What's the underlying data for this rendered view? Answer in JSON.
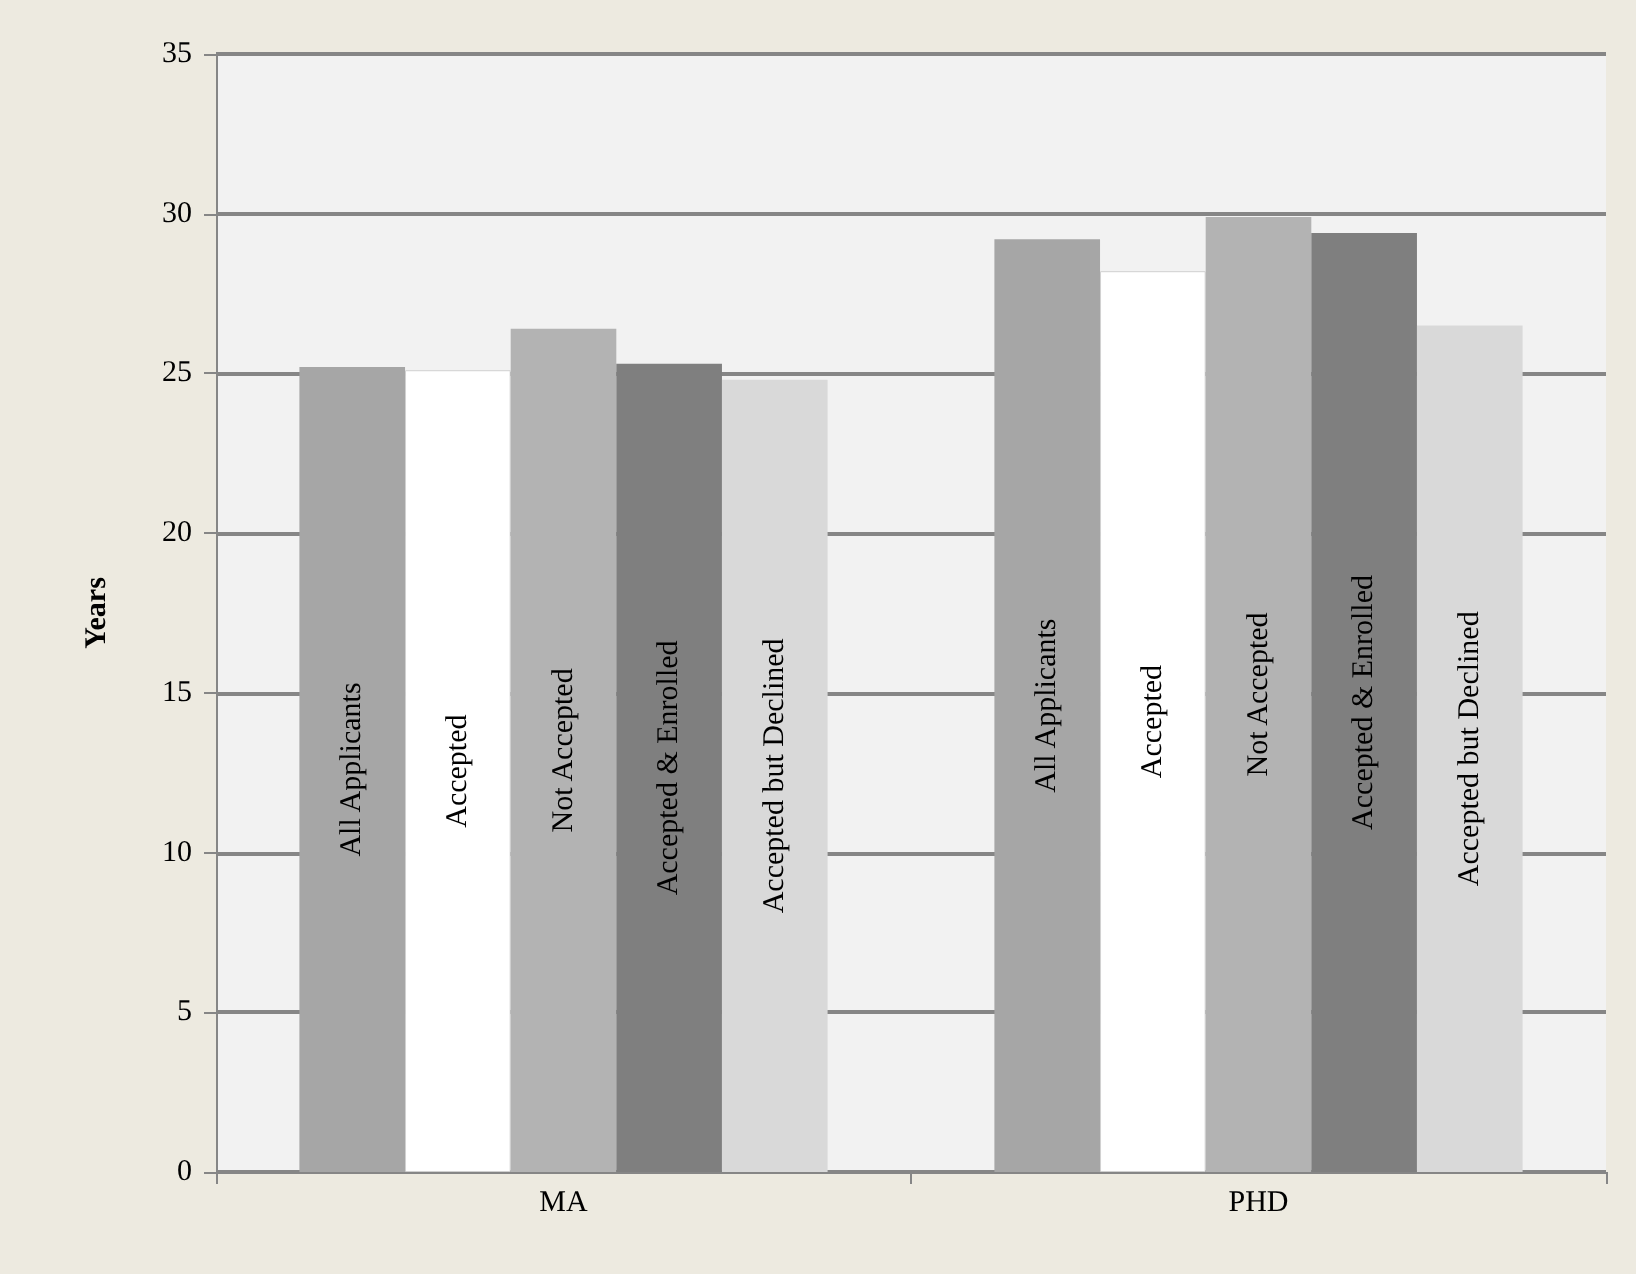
{
  "chart_data": {
    "type": "bar",
    "ylabel": "Years",
    "categories": [
      "MA",
      "PHD"
    ],
    "series": [
      {
        "name": "All Applicants",
        "color": "#a6a6a6",
        "values": [
          25.2,
          29.2
        ]
      },
      {
        "name": "Accepted",
        "color": "#ffffff",
        "values": [
          25.1,
          28.2
        ]
      },
      {
        "name": "Not Accepted",
        "color": "#b3b3b3",
        "values": [
          26.4,
          29.9
        ]
      },
      {
        "name": "Accepted & Enrolled",
        "color": "#7f7f7f",
        "values": [
          25.3,
          29.4
        ]
      },
      {
        "name": "Accepted but Declined",
        "color": "#d9d9d9",
        "values": [
          24.8,
          26.5
        ]
      }
    ],
    "ylim": [
      0,
      35
    ],
    "yticks": [
      0,
      5,
      10,
      15,
      20,
      25,
      30,
      35
    ],
    "grid": "y",
    "legend": false
  }
}
